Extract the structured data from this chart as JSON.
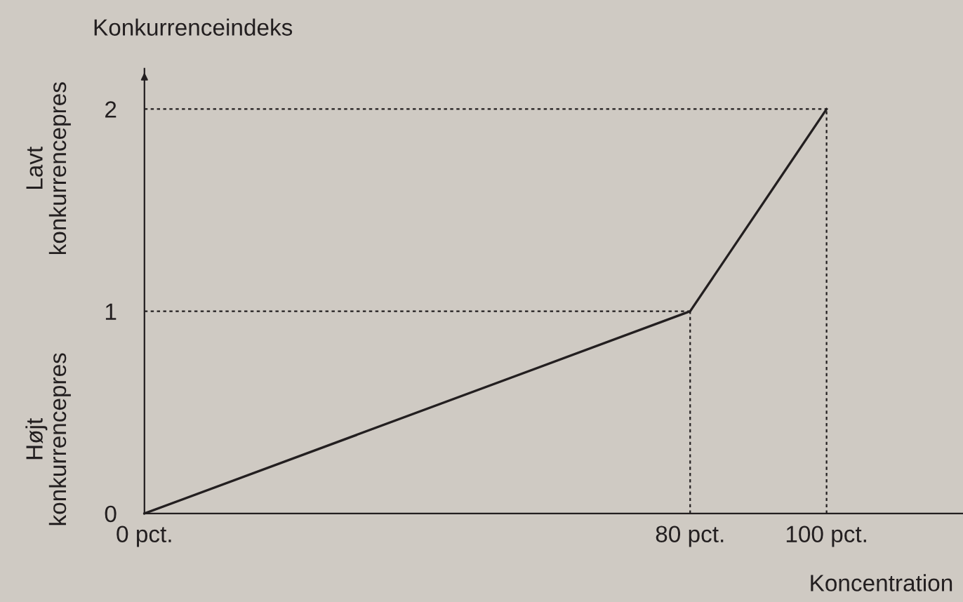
{
  "chart_data": {
    "type": "line",
    "xlabel": "Koncentration",
    "ylabel": "Konkurrenceindeks",
    "annotations": [
      "Lavt\nkonkurrencepres",
      "Højt\nkonkurrencepres"
    ],
    "xlim": [
      0,
      120
    ],
    "ylim": [
      0,
      2.2
    ],
    "xticks": [
      {
        "value": 0,
        "label": "0 pct."
      },
      {
        "value": 80,
        "label": "80 pct."
      },
      {
        "value": 100,
        "label": "100 pct."
      }
    ],
    "yticks": [
      0,
      1,
      2
    ],
    "grid": false,
    "marker": "none",
    "series": [
      {
        "color": "#231f20",
        "x": [
          0,
          80,
          100
        ],
        "values": [
          0,
          1,
          2
        ],
        "line_style": "solid"
      },
      {
        "color": "#231f20",
        "x": [
          0,
          80
        ],
        "values": [
          1,
          1
        ],
        "line_style": "dotted"
      },
      {
        "color": "#231f20",
        "x": [
          80,
          80
        ],
        "values": [
          0,
          1
        ],
        "line_style": "dotted"
      },
      {
        "color": "#231f20",
        "x": [
          0,
          100
        ],
        "values": [
          2,
          2
        ],
        "line_style": "dotted"
      },
      {
        "color": "#231f20",
        "x": [
          100,
          100
        ],
        "values": [
          0,
          2
        ],
        "line_style": "dotted"
      }
    ]
  }
}
